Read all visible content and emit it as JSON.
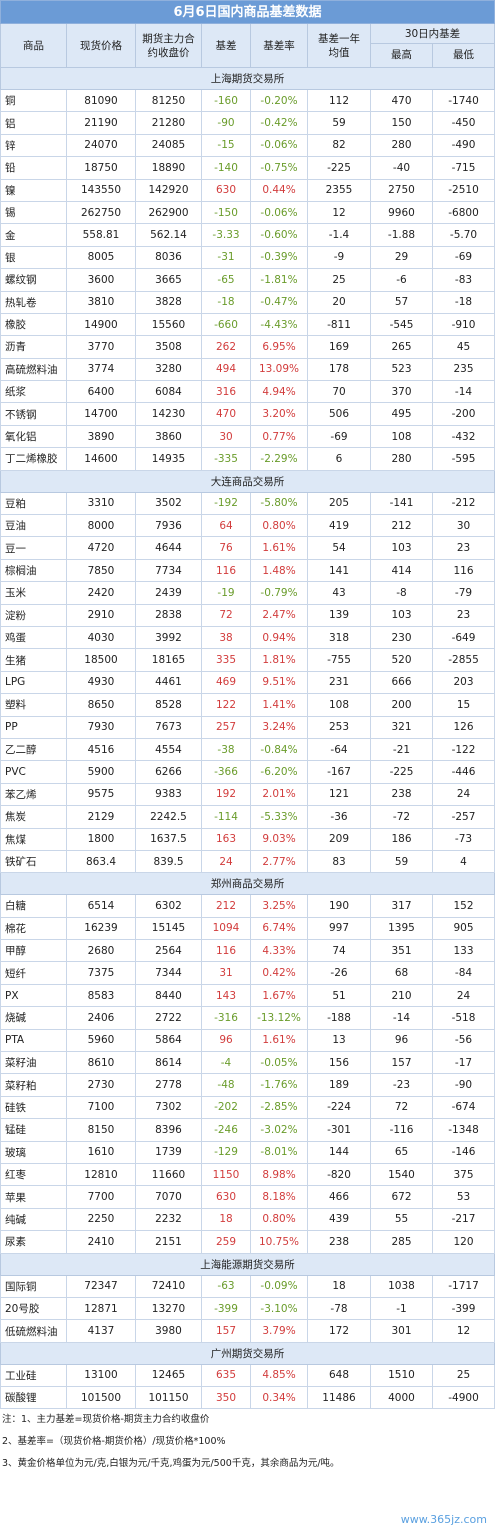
{
  "title": "6月6日国内商品基差数据",
  "headers": {
    "name": "商品",
    "spot": "现货价格",
    "futures": "期货主力合约收盘价",
    "basis": "基差",
    "basis_rate": "基差率",
    "basis_avg": "基差一年均值",
    "range30": "30日内基差",
    "high": "最高",
    "low": "最低"
  },
  "sections": [
    {
      "name": "上海期货交易所",
      "rows": [
        [
          "铜",
          "81090",
          "81250",
          "-160",
          "-0.20%",
          "112",
          "470",
          "-1740"
        ],
        [
          "铝",
          "21190",
          "21280",
          "-90",
          "-0.42%",
          "59",
          "150",
          "-450"
        ],
        [
          "锌",
          "24070",
          "24085",
          "-15",
          "-0.06%",
          "82",
          "280",
          "-490"
        ],
        [
          "铅",
          "18750",
          "18890",
          "-140",
          "-0.75%",
          "-225",
          "-40",
          "-715"
        ],
        [
          "镍",
          "143550",
          "142920",
          "630",
          "0.44%",
          "2355",
          "2750",
          "-2510"
        ],
        [
          "锡",
          "262750",
          "262900",
          "-150",
          "-0.06%",
          "12",
          "9960",
          "-6800"
        ],
        [
          "金",
          "558.81",
          "562.14",
          "-3.33",
          "-0.60%",
          "-1.4",
          "-1.88",
          "-5.70"
        ],
        [
          "银",
          "8005",
          "8036",
          "-31",
          "-0.39%",
          "-9",
          "29",
          "-69"
        ],
        [
          "螺纹钢",
          "3600",
          "3665",
          "-65",
          "-1.81%",
          "25",
          "-6",
          "-83"
        ],
        [
          "热轧卷",
          "3810",
          "3828",
          "-18",
          "-0.47%",
          "20",
          "57",
          "-18"
        ],
        [
          "橡胶",
          "14900",
          "15560",
          "-660",
          "-4.43%",
          "-811",
          "-545",
          "-910"
        ],
        [
          "沥青",
          "3770",
          "3508",
          "262",
          "6.95%",
          "169",
          "265",
          "45"
        ],
        [
          "高硫燃料油",
          "3774",
          "3280",
          "494",
          "13.09%",
          "178",
          "523",
          "235"
        ],
        [
          "纸浆",
          "6400",
          "6084",
          "316",
          "4.94%",
          "70",
          "370",
          "-14"
        ],
        [
          "不锈钢",
          "14700",
          "14230",
          "470",
          "3.20%",
          "506",
          "495",
          "-200"
        ],
        [
          "氧化铝",
          "3890",
          "3860",
          "30",
          "0.77%",
          "-69",
          "108",
          "-432"
        ],
        [
          "丁二烯橡胶",
          "14600",
          "14935",
          "-335",
          "-2.29%",
          "6",
          "280",
          "-595"
        ]
      ]
    },
    {
      "name": "大连商品交易所",
      "rows": [
        [
          "豆粕",
          "3310",
          "3502",
          "-192",
          "-5.80%",
          "205",
          "-141",
          "-212"
        ],
        [
          "豆油",
          "8000",
          "7936",
          "64",
          "0.80%",
          "419",
          "212",
          "30"
        ],
        [
          "豆一",
          "4720",
          "4644",
          "76",
          "1.61%",
          "54",
          "103",
          "23"
        ],
        [
          "棕榈油",
          "7850",
          "7734",
          "116",
          "1.48%",
          "141",
          "414",
          "116"
        ],
        [
          "玉米",
          "2420",
          "2439",
          "-19",
          "-0.79%",
          "43",
          "-8",
          "-79"
        ],
        [
          "淀粉",
          "2910",
          "2838",
          "72",
          "2.47%",
          "139",
          "103",
          "23"
        ],
        [
          "鸡蛋",
          "4030",
          "3992",
          "38",
          "0.94%",
          "318",
          "230",
          "-649"
        ],
        [
          "生猪",
          "18500",
          "18165",
          "335",
          "1.81%",
          "-755",
          "520",
          "-2855"
        ],
        [
          "LPG",
          "4930",
          "4461",
          "469",
          "9.51%",
          "231",
          "666",
          "203"
        ],
        [
          "塑料",
          "8650",
          "8528",
          "122",
          "1.41%",
          "108",
          "200",
          "15"
        ],
        [
          "PP",
          "7930",
          "7673",
          "257",
          "3.24%",
          "253",
          "321",
          "126"
        ],
        [
          "乙二醇",
          "4516",
          "4554",
          "-38",
          "-0.84%",
          "-64",
          "-21",
          "-122"
        ],
        [
          "PVC",
          "5900",
          "6266",
          "-366",
          "-6.20%",
          "-167",
          "-225",
          "-446"
        ],
        [
          "苯乙烯",
          "9575",
          "9383",
          "192",
          "2.01%",
          "121",
          "238",
          "24"
        ],
        [
          "焦炭",
          "2129",
          "2242.5",
          "-114",
          "-5.33%",
          "-36",
          "-72",
          "-257"
        ],
        [
          "焦煤",
          "1800",
          "1637.5",
          "163",
          "9.03%",
          "209",
          "186",
          "-73"
        ],
        [
          "铁矿石",
          "863.4",
          "839.5",
          "24",
          "2.77%",
          "83",
          "59",
          "4"
        ]
      ]
    },
    {
      "name": "郑州商品交易所",
      "rows": [
        [
          "白糖",
          "6514",
          "6302",
          "212",
          "3.25%",
          "190",
          "317",
          "152"
        ],
        [
          "棉花",
          "16239",
          "15145",
          "1094",
          "6.74%",
          "997",
          "1395",
          "905"
        ],
        [
          "甲醇",
          "2680",
          "2564",
          "116",
          "4.33%",
          "74",
          "351",
          "133"
        ],
        [
          "短纤",
          "7375",
          "7344",
          "31",
          "0.42%",
          "-26",
          "68",
          "-84"
        ],
        [
          "PX",
          "8583",
          "8440",
          "143",
          "1.67%",
          "51",
          "210",
          "24"
        ],
        [
          "烧碱",
          "2406",
          "2722",
          "-316",
          "-13.12%",
          "-188",
          "-14",
          "-518"
        ],
        [
          "PTA",
          "5960",
          "5864",
          "96",
          "1.61%",
          "13",
          "96",
          "-56"
        ],
        [
          "菜籽油",
          "8610",
          "8614",
          "-4",
          "-0.05%",
          "156",
          "157",
          "-17"
        ],
        [
          "菜籽粕",
          "2730",
          "2778",
          "-48",
          "-1.76%",
          "189",
          "-23",
          "-90"
        ],
        [
          "硅铁",
          "7100",
          "7302",
          "-202",
          "-2.85%",
          "-224",
          "72",
          "-674"
        ],
        [
          "锰硅",
          "8150",
          "8396",
          "-246",
          "-3.02%",
          "-301",
          "-116",
          "-1348"
        ],
        [
          "玻璃",
          "1610",
          "1739",
          "-129",
          "-8.01%",
          "144",
          "65",
          "-146"
        ],
        [
          "红枣",
          "12810",
          "11660",
          "1150",
          "8.98%",
          "-820",
          "1540",
          "375"
        ],
        [
          "苹果",
          "7700",
          "7070",
          "630",
          "8.18%",
          "466",
          "672",
          "53"
        ],
        [
          "纯碱",
          "2250",
          "2232",
          "18",
          "0.80%",
          "439",
          "55",
          "-217"
        ],
        [
          "尿素",
          "2410",
          "2151",
          "259",
          "10.75%",
          "238",
          "285",
          "120"
        ]
      ]
    },
    {
      "name": "上海能源期货交易所",
      "rows": [
        [
          "国际铜",
          "72347",
          "72410",
          "-63",
          "-0.09%",
          "18",
          "1038",
          "-1717"
        ],
        [
          "20号胶",
          "12871",
          "13270",
          "-399",
          "-3.10%",
          "-78",
          "-1",
          "-399"
        ],
        [
          "低硫燃料油",
          "4137",
          "3980",
          "157",
          "3.79%",
          "172",
          "301",
          "12"
        ]
      ]
    },
    {
      "name": "广州期货交易所",
      "rows": [
        [
          "工业硅",
          "13100",
          "12465",
          "635",
          "4.85%",
          "648",
          "1510",
          "25"
        ],
        [
          "碳酸锂",
          "101500",
          "101150",
          "350",
          "0.34%",
          "11486",
          "4000",
          "-4900"
        ]
      ]
    }
  ],
  "notes": [
    "注：1、主力基差=现货价格-期货主力合约收盘价",
    "2、基差率=（现货价格-期货价格）/现货价格*100%",
    "3、黄金价格单位为元/克,白银为元/千克,鸡蛋为元/500千克，其余商品为元/吨。"
  ],
  "watermark": "www.365jz.com",
  "colors": {
    "positive": "#d23c3c",
    "negative": "#6a9c2b",
    "header_bg": "#dde8f6",
    "title_bg": "#6b9bd6"
  }
}
